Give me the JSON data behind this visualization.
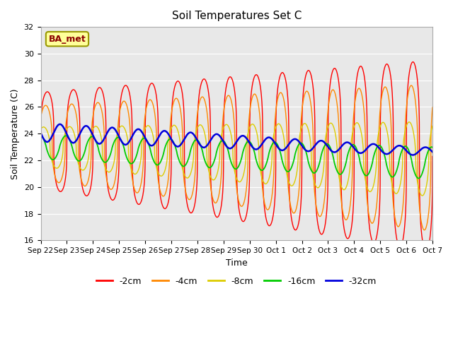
{
  "title": "Soil Temperatures Set C",
  "xlabel": "Time",
  "ylabel": "Soil Temperature (C)",
  "ylim": [
    16,
    32
  ],
  "background_color": "#e8e8e8",
  "label_text": "BA_met",
  "tick_labels": [
    "Sep 22",
    "Sep 23",
    "Sep 24",
    "Sep 25",
    "Sep 26",
    "Sep 27",
    "Sep 28",
    "Sep 29",
    "Sep 30",
    "Oct 1",
    "Oct 2",
    "Oct 3",
    "Oct 4",
    "Oct 5",
    "Oct 6",
    "Oct 7"
  ],
  "legend_order": [
    "-2cm",
    "-4cm",
    "-8cm",
    "-16cm",
    "-32cm"
  ],
  "colors": {
    "-2cm": "#ff0000",
    "-4cm": "#ff8800",
    "-8cm": "#ddcc00",
    "-16cm": "#00cc00",
    "-32cm": "#0000dd"
  },
  "series_params": {
    "-2cm": {
      "amp_s": 3.6,
      "amp_e": 7.2,
      "mean_s": 23.5,
      "mean_e": 22.3,
      "phase": 0.0,
      "sharpness": 3.5
    },
    "-4cm": {
      "amp_s": 2.8,
      "amp_e": 5.5,
      "mean_s": 23.3,
      "mean_e": 22.2,
      "phase": 0.4,
      "sharpness": 2.5
    },
    "-8cm": {
      "amp_s": 1.5,
      "amp_e": 2.8,
      "mean_s": 23.0,
      "mean_e": 22.1,
      "phase": 0.9,
      "sharpness": 2.0
    },
    "-16cm": {
      "amp_s": 0.9,
      "amp_e": 1.2,
      "mean_s": 23.0,
      "mean_e": 21.8,
      "phase": 1.8,
      "sharpness": 1.2
    },
    "-32cm": {
      "amp_s": 0.7,
      "amp_e": 0.3,
      "mean_s": 24.1,
      "mean_e": 22.65,
      "phase": 3.2,
      "sharpness": 1.0
    }
  },
  "linewidths": {
    "-2cm": 1.0,
    "-4cm": 1.0,
    "-8cm": 1.0,
    "-16cm": 1.3,
    "-32cm": 1.8
  }
}
